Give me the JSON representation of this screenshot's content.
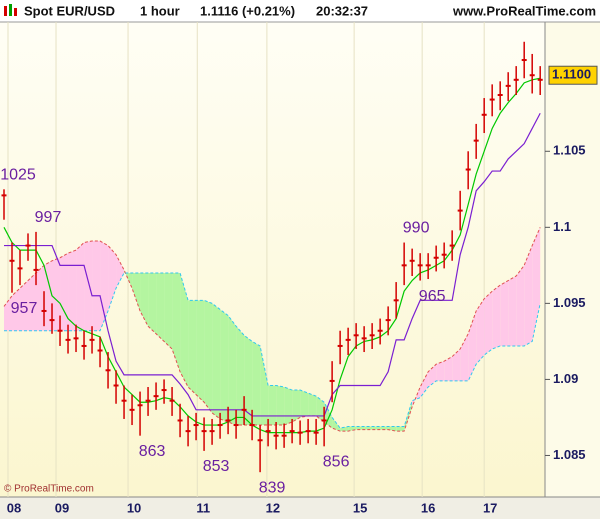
{
  "chart_data": {
    "type": "hlc",
    "header": {
      "symbol": "Spot EUR/USD",
      "interval": "1 hour",
      "quote": "1.1116 (+0.21%)",
      "time": "20:32:37",
      "site": "www.ProRealTime.com"
    },
    "footer": "© ProRealTime.com",
    "xlim": [
      -0.5,
      67.6
    ],
    "xticks": [
      {
        "value": 1.25,
        "label": "08"
      },
      {
        "value": 7.25,
        "label": "09"
      },
      {
        "value": 16.25,
        "label": "10"
      },
      {
        "value": 24.9,
        "label": "11"
      },
      {
        "value": 33.6,
        "label": "12"
      },
      {
        "value": 44.5,
        "label": "15"
      },
      {
        "value": 53,
        "label": "16"
      },
      {
        "value": 60.75,
        "label": "17"
      }
    ],
    "ylim": [
      1.0824,
      1.1135
    ],
    "yticks": [
      1.085,
      1.09,
      1.095,
      1.1,
      1.105
    ],
    "price_marker": {
      "value": 1.11,
      "label": "1.1100"
    },
    "color": "#d40000",
    "high": [
      1.1025,
      1.099,
      1.0985,
      1.0996,
      1.0997,
      1.0958,
      1.095,
      1.0942,
      1.0936,
      1.0936,
      1.0932,
      1.0935,
      1.0928,
      1.0918,
      1.0906,
      1.0896,
      1.089,
      1.0892,
      1.0895,
      1.0898,
      1.09,
      1.0895,
      1.0884,
      1.0876,
      1.0878,
      1.0875,
      1.0874,
      1.0878,
      1.0882,
      1.088,
      1.0889,
      1.088,
      1.087,
      1.0874,
      1.0872,
      1.0871,
      1.0874,
      1.0873,
      1.0874,
      1.0874,
      1.0882,
      1.0912,
      1.0932,
      1.0934,
      1.0937,
      1.0935,
      1.0937,
      1.094,
      1.0948,
      1.0964,
      1.099,
      1.0986,
      1.0983,
      1.0983,
      1.0988,
      1.099,
      1.0998,
      1.1024,
      1.105,
      1.1068,
      1.1085,
      1.1094,
      1.1096,
      1.1102,
      1.1106,
      1.1122,
      1.1114,
      1.1106
    ],
    "low": [
      1.1005,
      1.0957,
      1.0962,
      1.0978,
      1.0962,
      1.0935,
      1.093,
      1.0922,
      1.0917,
      1.0918,
      1.0913,
      1.0917,
      1.0908,
      1.0894,
      1.0884,
      1.0874,
      1.087,
      1.0863,
      1.0876,
      1.088,
      1.0884,
      1.0876,
      1.0862,
      1.0856,
      1.086,
      1.0853,
      1.0857,
      1.0861,
      1.0864,
      1.0861,
      1.087,
      1.086,
      1.0839,
      1.0856,
      1.0854,
      1.0855,
      1.0858,
      1.0857,
      1.0858,
      1.0857,
      1.0856,
      1.0885,
      1.091,
      1.0916,
      1.092,
      1.0918,
      1.092,
      1.0923,
      1.0929,
      1.094,
      1.0962,
      1.0968,
      1.0965,
      1.0966,
      1.0971,
      1.0973,
      1.0978,
      1.0998,
      1.1025,
      1.1045,
      1.1062,
      1.1073,
      1.1077,
      1.1083,
      1.1087,
      1.1098,
      1.1088,
      1.1087
    ],
    "close": [
      1.1021,
      1.0978,
      1.0973,
      1.0988,
      1.0972,
      1.0945,
      1.0939,
      1.0932,
      1.0926,
      1.0927,
      1.0922,
      1.0926,
      1.0919,
      1.0906,
      1.0896,
      1.0886,
      1.088,
      1.0883,
      1.0886,
      1.0889,
      1.0893,
      1.0886,
      1.0873,
      1.0866,
      1.087,
      1.0866,
      1.0866,
      1.087,
      1.0873,
      1.087,
      1.088,
      1.087,
      1.086,
      1.0866,
      1.0863,
      1.0863,
      1.0866,
      1.0865,
      1.0866,
      1.0865,
      1.0873,
      1.0899,
      1.0922,
      1.0926,
      1.0929,
      1.0927,
      1.0929,
      1.0932,
      1.0939,
      1.0952,
      1.0975,
      1.0978,
      1.0975,
      1.0975,
      1.098,
      1.0982,
      1.0988,
      1.1011,
      1.1038,
      1.1057,
      1.1074,
      1.1084,
      1.1087,
      1.1093,
      1.1097,
      1.111,
      1.11,
      1.1097
    ],
    "lines": [
      {
        "color": "#00c800",
        "values": [
          1.1,
          1.099,
          1.0985,
          1.0985,
          1.0985,
          1.0975,
          1.0955,
          1.095,
          1.094,
          1.0935,
          1.0932,
          1.093,
          1.0928,
          1.0915,
          1.0905,
          1.0895,
          1.089,
          1.0885,
          1.0885,
          1.0886,
          1.0888,
          1.0887,
          1.0882,
          1.0876,
          1.0872,
          1.087,
          1.087,
          1.087,
          1.0872,
          1.0875,
          1.0875,
          1.087,
          1.0867,
          1.0865,
          1.0865,
          1.0865,
          1.0865,
          1.0865,
          1.0866,
          1.0866,
          1.0868,
          1.088,
          1.09,
          1.0915,
          1.0922,
          1.0925,
          1.0926,
          1.0928,
          1.0932,
          1.094,
          1.0958,
          1.0965,
          1.097,
          1.0972,
          1.0975,
          1.0978,
          1.0985,
          1.0995,
          1.1015,
          1.1035,
          1.105,
          1.1065,
          1.1075,
          1.1082,
          1.1088,
          1.1095,
          1.1097,
          1.1098
        ]
      },
      {
        "color": "#7a1fd1",
        "values": [
          1.0988,
          1.0988,
          1.0988,
          1.0988,
          1.0988,
          1.0988,
          1.0988,
          1.0975,
          1.0975,
          1.0975,
          1.0975,
          1.0955,
          1.0955,
          1.0932,
          1.0912,
          1.0903,
          1.0903,
          1.0903,
          1.0903,
          1.0903,
          1.0903,
          1.0903,
          1.0897,
          1.089,
          1.088,
          1.088,
          1.088,
          1.088,
          1.088,
          1.088,
          1.088,
          1.0876,
          1.0876,
          1.0876,
          1.0876,
          1.0876,
          1.0876,
          1.0876,
          1.0876,
          1.0876,
          1.0876,
          1.089,
          1.0896,
          1.0896,
          1.0896,
          1.0896,
          1.0896,
          1.0896,
          1.0905,
          1.0926,
          1.0926,
          1.094,
          1.0952,
          1.0952,
          1.0952,
          1.0952,
          1.0952,
          1.0982,
          1.1,
          1.1024,
          1.103,
          1.1037,
          1.1037,
          1.1045,
          1.105,
          1.1055,
          1.1065,
          1.1075
        ]
      }
    ],
    "cloud": {
      "colors": {
        "above": "#ffc8e8",
        "below": "#b4f5a0",
        "span_a": "#e05050",
        "span_b": "#30c8f0"
      },
      "span_a": [
        1.0948,
        1.0955,
        1.096,
        1.0965,
        1.097,
        1.0975,
        1.0978,
        1.098,
        1.0983,
        1.0985,
        1.099,
        1.0991,
        1.0991,
        1.0988,
        1.0982,
        1.0972,
        1.096,
        1.0945,
        1.0935,
        1.093,
        1.0925,
        1.092,
        1.0905,
        1.0895,
        1.089,
        1.0885,
        1.0878,
        1.0874,
        1.0872,
        1.087,
        1.087,
        1.087,
        1.087,
        1.087,
        1.087,
        1.087,
        1.0872,
        1.0875,
        1.0876,
        1.0876,
        1.0872,
        1.0868,
        1.0866,
        1.0866,
        1.0867,
        1.0867,
        1.0867,
        1.0867,
        1.0867,
        1.0866,
        1.0866,
        1.0882,
        1.0895,
        1.0905,
        1.091,
        1.0912,
        1.0915,
        1.092,
        1.093,
        1.0945,
        1.0953,
        1.0958,
        1.0962,
        1.0965,
        1.0968,
        1.0975,
        1.0988,
        1.1
      ],
      "span_b": [
        1.0932,
        1.0932,
        1.0932,
        1.0932,
        1.0932,
        1.0932,
        1.0932,
        1.0932,
        1.0932,
        1.0932,
        1.0932,
        1.0932,
        1.0932,
        1.0945,
        1.096,
        1.097,
        1.097,
        1.097,
        1.097,
        1.097,
        1.097,
        1.097,
        1.097,
        1.0952,
        1.0952,
        1.0952,
        1.095,
        1.0946,
        1.0942,
        1.0935,
        1.0929,
        1.0925,
        1.0922,
        1.0896,
        1.0896,
        1.0895,
        1.0893,
        1.0893,
        1.0891,
        1.0889,
        1.0885,
        1.0875,
        1.0868,
        1.0869,
        1.0869,
        1.0869,
        1.0869,
        1.0869,
        1.0869,
        1.0869,
        1.0869,
        1.0886,
        1.0888,
        1.0895,
        1.0899,
        1.0899,
        1.0899,
        1.0899,
        1.0899,
        1.091,
        1.0916,
        1.092,
        1.0922,
        1.0922,
        1.0922,
        1.0922,
        1.0925,
        1.095
      ]
    },
    "annotations": [
      {
        "x": 0,
        "value": 1.1025,
        "label": "1025"
      },
      {
        "x": 4,
        "value": 1.0997,
        "label": "997"
      },
      {
        "x": 1,
        "value": 1.0957,
        "label": "957"
      },
      {
        "x": 17,
        "value": 1.0863,
        "label": "863"
      },
      {
        "x": 25,
        "value": 1.0853,
        "label": "853"
      },
      {
        "x": 32,
        "value": 1.0839,
        "label": "839"
      },
      {
        "x": 40,
        "value": 1.0856,
        "label": "856"
      },
      {
        "x": 50,
        "value": 1.099,
        "label": "990"
      },
      {
        "x": 52,
        "value": 1.0965,
        "label": "965"
      }
    ]
  }
}
